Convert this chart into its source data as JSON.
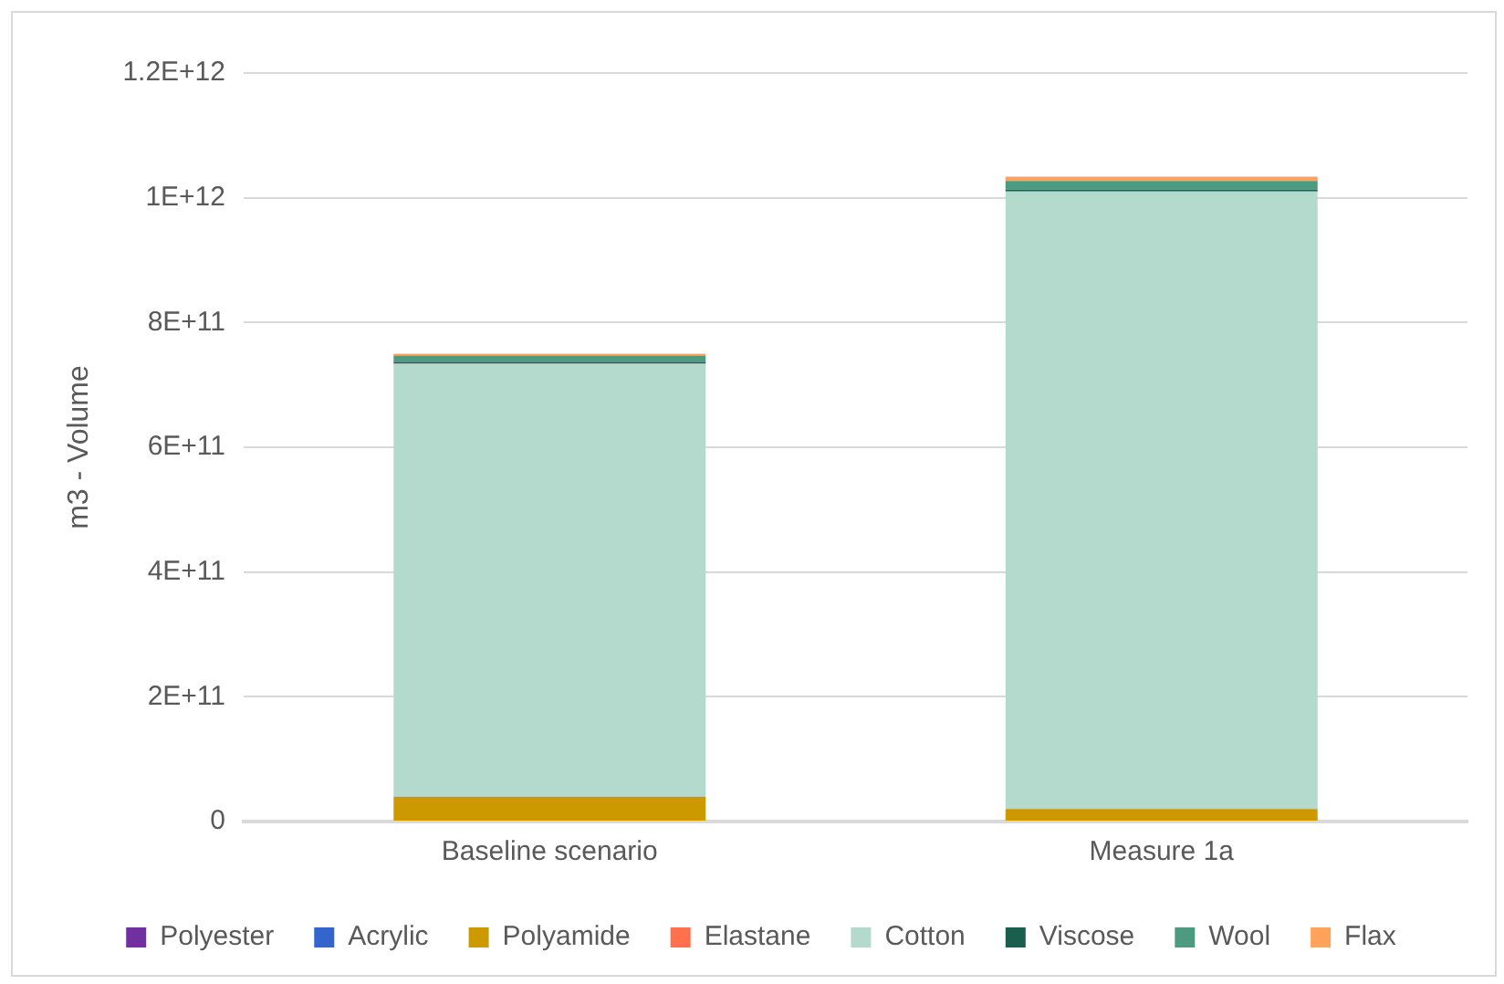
{
  "chart_data": {
    "type": "bar",
    "stacked": true,
    "ylabel": "m3 - Volume",
    "categories": [
      "Baseline scenario",
      "Measure 1a"
    ],
    "series": [
      {
        "name": "Polyester",
        "color": "#7030a0",
        "values": [
          0,
          0
        ]
      },
      {
        "name": "Acrylic",
        "color": "#3366cc",
        "values": [
          0,
          0
        ]
      },
      {
        "name": "Polyamide",
        "color": "#cc9900",
        "values": [
          40000000000,
          20000000000
        ]
      },
      {
        "name": "Elastane",
        "color": "#ff704d",
        "values": [
          0,
          0
        ]
      },
      {
        "name": "Cotton",
        "color": "#b3dacc",
        "values": [
          694000000000,
          990000000000
        ]
      },
      {
        "name": "Viscose",
        "color": "#1a5e4e",
        "values": [
          3000000000,
          3000000000
        ]
      },
      {
        "name": "Wool",
        "color": "#4c9a80",
        "values": [
          10000000000,
          14000000000
        ]
      },
      {
        "name": "Flax",
        "color": "#ffa35a",
        "values": [
          3000000000,
          7000000000
        ]
      }
    ],
    "ylim": [
      0,
      1200000000000
    ],
    "yticks": [
      {
        "value": 0,
        "label": "0"
      },
      {
        "value": 200000000000,
        "label": "2E+11"
      },
      {
        "value": 400000000000,
        "label": "4E+11"
      },
      {
        "value": 600000000000,
        "label": "6E+11"
      },
      {
        "value": 800000000000,
        "label": "8E+11"
      },
      {
        "value": 1000000000000,
        "label": "1E+12"
      },
      {
        "value": 1200000000000,
        "label": "1.2E+12"
      }
    ],
    "grid": "y",
    "legend": "bottom"
  }
}
